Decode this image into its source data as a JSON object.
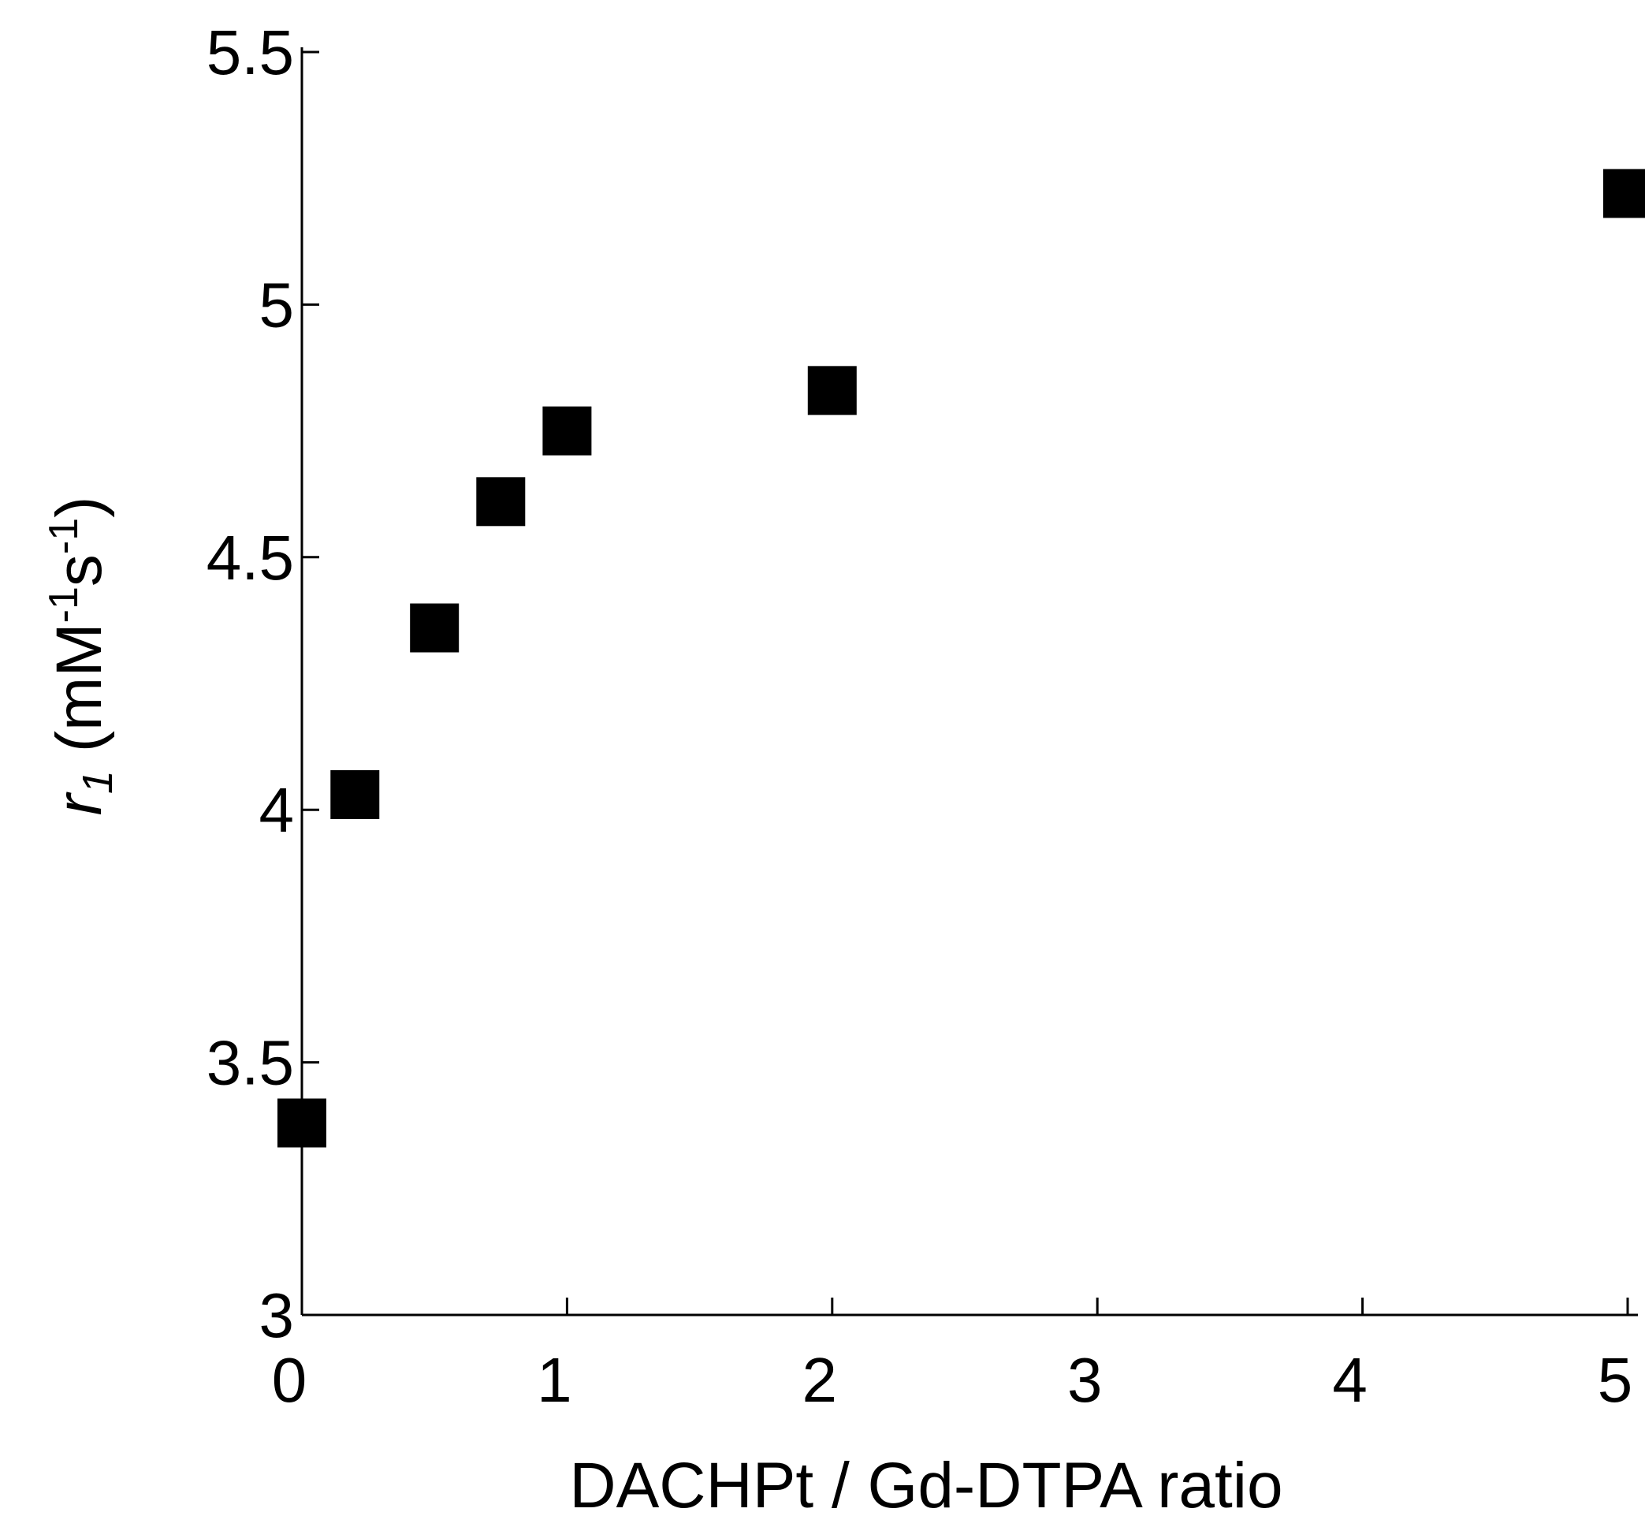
{
  "chart_data": {
    "type": "scatter",
    "title": "",
    "xlabel": "DACHPt / Gd-DTPA ratio",
    "ylabel": {
      "symbol": "r",
      "subscript": "1",
      "units_prefix": " (mM",
      "exp1": "-1",
      "middle": "s",
      "exp2": "-1",
      "units_suffix": ")"
    },
    "xlim": [
      0,
      5
    ],
    "ylim": [
      3,
      5.5
    ],
    "xticks": [
      0,
      1,
      2,
      3,
      4,
      5
    ],
    "yticks": [
      3,
      3.5,
      4,
      4.5,
      5,
      5.5
    ],
    "xtick_labels": [
      "0",
      "1",
      "2",
      "3",
      "4",
      "5"
    ],
    "ytick_labels": [
      "3",
      "3.5",
      "4",
      "4.5",
      "5",
      "5.5"
    ],
    "grid": false,
    "marker": "square",
    "marker_color": "#000000",
    "series": [
      {
        "x": [
          0,
          0.2,
          0.5,
          0.75,
          1.0,
          2.0,
          5.0
        ],
        "y": [
          3.38,
          4.03,
          4.36,
          4.61,
          4.75,
          4.83,
          5.22
        ]
      }
    ]
  }
}
